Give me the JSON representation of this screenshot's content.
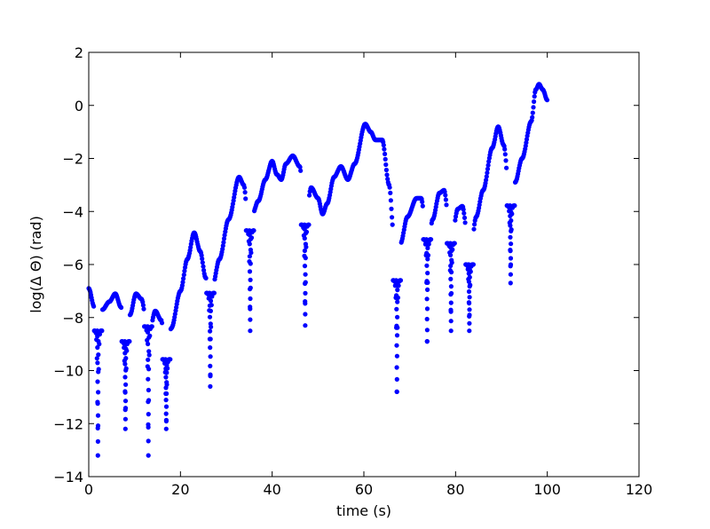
{
  "chart_data": {
    "type": "scatter",
    "title": "",
    "xlabel": "time (s)",
    "ylabel": "log(Δ Θ) (rad)",
    "xlim": [
      0,
      120
    ],
    "ylim": [
      -14,
      2
    ],
    "xticks": [
      0,
      20,
      40,
      60,
      80,
      100,
      120
    ],
    "yticks": [
      -14,
      -12,
      -10,
      -8,
      -6,
      -4,
      -2,
      0,
      2
    ],
    "xtick_labels": [
      "0",
      "20",
      "40",
      "60",
      "80",
      "100",
      "120"
    ],
    "ytick_labels": [
      "−14",
      "−12",
      "−10",
      "−8",
      "−6",
      "−4",
      "−2",
      "0",
      "2"
    ],
    "grid": false,
    "legend": null,
    "marker_color": "#0000ff",
    "marker": "circle",
    "curve_key_points": [
      [
        0,
        -6.9
      ],
      [
        1.2,
        -7.6
      ],
      [
        2.2,
        -8.6
      ],
      [
        3.0,
        -7.7
      ],
      [
        4.5,
        -7.4
      ],
      [
        5.8,
        -7.1
      ],
      [
        7.0,
        -7.6
      ],
      [
        8.0,
        -8.9
      ],
      [
        9.0,
        -7.9
      ],
      [
        10.3,
        -7.1
      ],
      [
        11.5,
        -7.3
      ],
      [
        12.7,
        -8.3
      ],
      [
        13.4,
        -8.4
      ],
      [
        14.5,
        -7.75
      ],
      [
        15.8,
        -8.1
      ],
      [
        16.8,
        -9.6
      ],
      [
        18.0,
        -8.4
      ],
      [
        20.0,
        -7.0
      ],
      [
        21.5,
        -5.8
      ],
      [
        23.0,
        -4.8
      ],
      [
        24.3,
        -5.5
      ],
      [
        25.5,
        -6.5
      ],
      [
        26.2,
        -7.2
      ],
      [
        27.0,
        -6.8
      ],
      [
        28.5,
        -5.8
      ],
      [
        30.5,
        -4.3
      ],
      [
        32.8,
        -2.7
      ],
      [
        33.8,
        -3.0
      ],
      [
        35.0,
        -5.0
      ],
      [
        35.5,
        -4.2
      ],
      [
        37.0,
        -3.6
      ],
      [
        38.5,
        -2.8
      ],
      [
        40.0,
        -2.1
      ],
      [
        41.0,
        -2.6
      ],
      [
        42.0,
        -2.8
      ],
      [
        43.0,
        -2.2
      ],
      [
        44.5,
        -1.9
      ],
      [
        46.0,
        -2.3
      ],
      [
        47.2,
        -4.5
      ],
      [
        48.5,
        -3.1
      ],
      [
        50.0,
        -3.5
      ],
      [
        51.0,
        -4.1
      ],
      [
        52.0,
        -3.7
      ],
      [
        53.5,
        -2.7
      ],
      [
        55.0,
        -2.3
      ],
      [
        56.5,
        -2.8
      ],
      [
        58.0,
        -2.2
      ],
      [
        60.3,
        -0.7
      ],
      [
        61.5,
        -1.0
      ],
      [
        62.5,
        -1.3
      ],
      [
        64.0,
        -1.3
      ],
      [
        65.5,
        -3.0
      ],
      [
        66.5,
        -4.8
      ],
      [
        67.2,
        -6.6
      ],
      [
        68.0,
        -5.2
      ],
      [
        69.5,
        -4.2
      ],
      [
        71.5,
        -3.5
      ],
      [
        72.5,
        -3.5
      ],
      [
        73.5,
        -4.6
      ],
      [
        74.0,
        -5.3
      ],
      [
        75.0,
        -4.3
      ],
      [
        76.5,
        -3.3
      ],
      [
        77.5,
        -3.2
      ],
      [
        78.5,
        -4.3
      ],
      [
        79.0,
        -5.2
      ],
      [
        80.5,
        -3.9
      ],
      [
        81.5,
        -3.8
      ],
      [
        82.5,
        -4.8
      ],
      [
        83.0,
        -6.0
      ],
      [
        84.5,
        -4.2
      ],
      [
        86.0,
        -3.2
      ],
      [
        88.0,
        -1.6
      ],
      [
        89.3,
        -0.8
      ],
      [
        90.5,
        -1.5
      ],
      [
        91.9,
        -3.8
      ],
      [
        93.0,
        -2.9
      ],
      [
        94.5,
        -2.0
      ],
      [
        96.5,
        -0.6
      ],
      [
        97.5,
        0.6
      ],
      [
        98.2,
        0.8
      ],
      [
        99.0,
        0.6
      ],
      [
        100.0,
        0.2
      ]
    ],
    "dips": [
      {
        "x": 2.0,
        "y_min": -13.2
      },
      {
        "x": 8.0,
        "y_min": -12.2
      },
      {
        "x": 13.0,
        "y_min": -13.2
      },
      {
        "x": 16.9,
        "y_min": -12.2
      },
      {
        "x": 26.5,
        "y_min": -10.6
      },
      {
        "x": 35.2,
        "y_min": -8.5
      },
      {
        "x": 47.2,
        "y_min": -8.3
      },
      {
        "x": 67.2,
        "y_min": -10.8
      },
      {
        "x": 73.8,
        "y_min": -8.9
      },
      {
        "x": 79.0,
        "y_min": -8.5
      },
      {
        "x": 83.0,
        "y_min": -8.5
      },
      {
        "x": 92.0,
        "y_min": -6.7
      }
    ]
  }
}
